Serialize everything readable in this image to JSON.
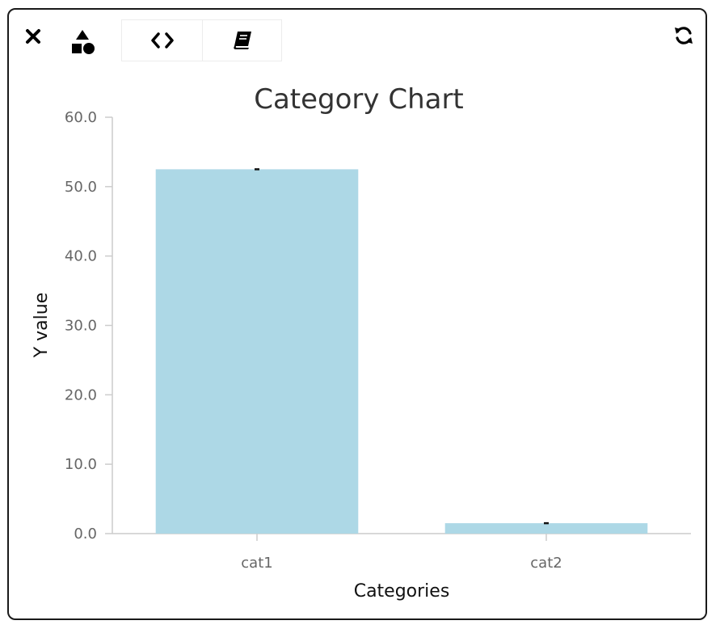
{
  "toolbar": {
    "close_icon": "close-icon",
    "shapes_icon": "shapes-icon",
    "code_icon": "code-icon",
    "book_icon": "book-icon",
    "refresh_icon": "refresh-icon"
  },
  "colors": {
    "bar": "#add8e6",
    "axis": "#cccccc",
    "tick_text": "#666666",
    "error_bar": "#111111"
  },
  "chart_data": {
    "type": "bar",
    "title": "Category Chart",
    "xlabel": "Categories",
    "ylabel": "Y value",
    "categories": [
      "cat1",
      "cat2"
    ],
    "values": [
      52.5,
      1.5
    ],
    "errors": [
      0.1,
      0.1
    ],
    "ylim": [
      0,
      60
    ],
    "yticks": [
      0,
      10,
      20,
      30,
      40,
      50,
      60
    ],
    "ytick_labels": [
      "0.0",
      "10.0",
      "20.0",
      "30.0",
      "40.0",
      "50.0",
      "60.0"
    ],
    "grid": false,
    "legend": "none"
  }
}
